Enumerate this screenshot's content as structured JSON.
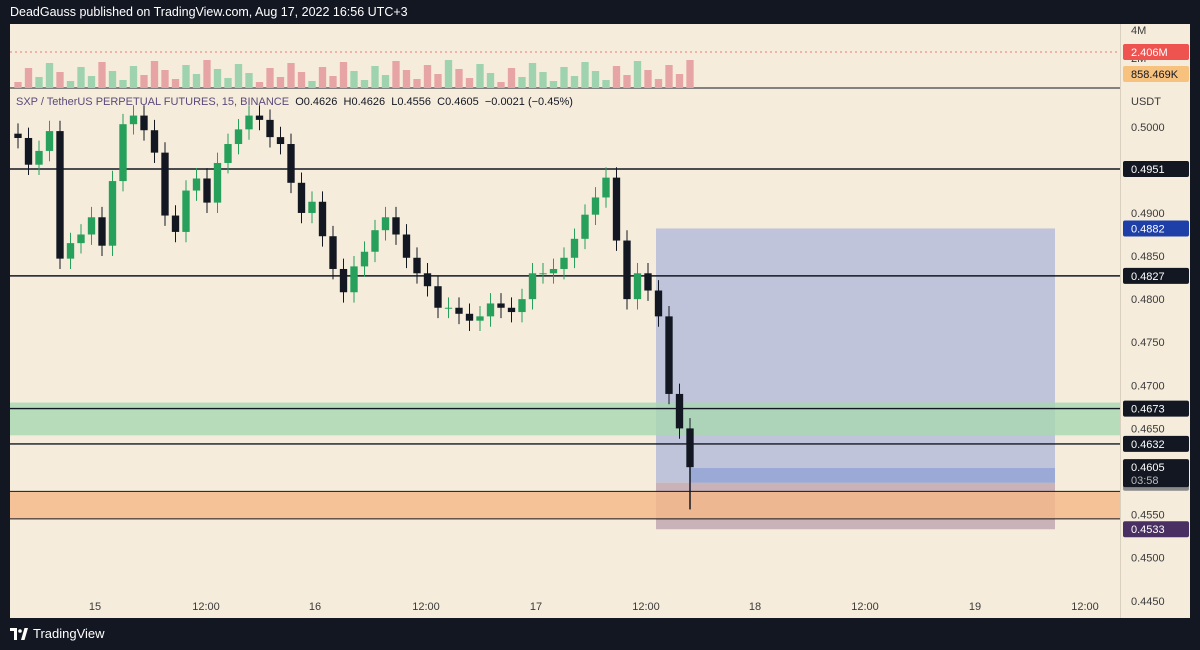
{
  "header": {
    "publisher": "DeadGauss published on TradingView.com, Aug 17, 2022 16:56 UTC+3"
  },
  "footer": {
    "brand": "TradingView"
  },
  "legend": {
    "symbol": "SXP / TetherUS PERPETUAL FUTURES, 15, BINANCE",
    "open": "O0.4626",
    "high": "H0.4626",
    "low": "L0.4556",
    "close": "C0.4605",
    "change": "−0.0021 (−0.45%)"
  },
  "colors": {
    "background": "#f5ecdc",
    "up": "#26a05a",
    "down": "#131722",
    "position_box": "#aab4d8",
    "green_zone": "#a8d8b0",
    "orange_zone": "#f5b887",
    "volume_tag": "#ef5350",
    "volume_ma_tag": "#f7c17e",
    "level_tag": "#131722",
    "target_tag": "#1e3fa8",
    "stop_tag": "#4a2f63"
  },
  "chart_data": {
    "type": "candlestick",
    "title": "SXP / TetherUS PERPETUAL FUTURES, 15, BINANCE",
    "currency": "USDT",
    "ylim": [
      0.443,
      0.5045
    ],
    "y_ticks": [
      "0.5000",
      "0.4900",
      "0.4850",
      "0.4800",
      "0.4750",
      "0.4700",
      "0.4650",
      "0.4550",
      "0.4500",
      "0.4450"
    ],
    "x_ticks": [
      "15",
      "12:00",
      "16",
      "12:00",
      "17",
      "12:00",
      "18",
      "12:00",
      "19",
      "12:00"
    ],
    "ohlc_last": {
      "open": 0.4626,
      "high": 0.4626,
      "low": 0.4556,
      "close": 0.4605,
      "change": -0.0021,
      "change_pct": -0.45
    },
    "last_price": {
      "value": "0.4605",
      "countdown": "03:58"
    },
    "horizontal_levels": [
      {
        "value": "0.4951"
      },
      {
        "value": "0.4827"
      },
      {
        "value": "0.4673"
      },
      {
        "value": "0.4632"
      }
    ],
    "zones": [
      {
        "name": "green",
        "from": 0.4642,
        "to": 0.468
      },
      {
        "name": "orange",
        "from": 0.4545,
        "to": 0.4577
      }
    ],
    "position": {
      "target": "0.4882",
      "entry": "0.4587",
      "stop": "0.4533"
    },
    "volume": {
      "axis_ticks": [
        "4M",
        "2M"
      ],
      "last": "2.406M",
      "ma": "858.469K"
    },
    "series_approx_close": [
      0.4987,
      0.4956,
      0.4972,
      0.4995,
      0.4847,
      0.4865,
      0.4875,
      0.4895,
      0.4862,
      0.4937,
      0.5003,
      0.5013,
      0.4996,
      0.497,
      0.4897,
      0.4878,
      0.4926,
      0.494,
      0.4912,
      0.4958,
      0.498,
      0.4997,
      0.5013,
      0.5008,
      0.4988,
      0.498,
      0.4935,
      0.49,
      0.4913,
      0.4873,
      0.4835,
      0.4808,
      0.4838,
      0.4855,
      0.488,
      0.4895,
      0.4875,
      0.4848,
      0.483,
      0.4815,
      0.479,
      0.479,
      0.4783,
      0.4775,
      0.478,
      0.4795,
      0.479,
      0.4785,
      0.48,
      0.483,
      0.483,
      0.4835,
      0.4848,
      0.487,
      0.4898,
      0.4918,
      0.4941,
      0.4868,
      0.48,
      0.483,
      0.481,
      0.478,
      0.469,
      0.465,
      0.4605
    ]
  }
}
